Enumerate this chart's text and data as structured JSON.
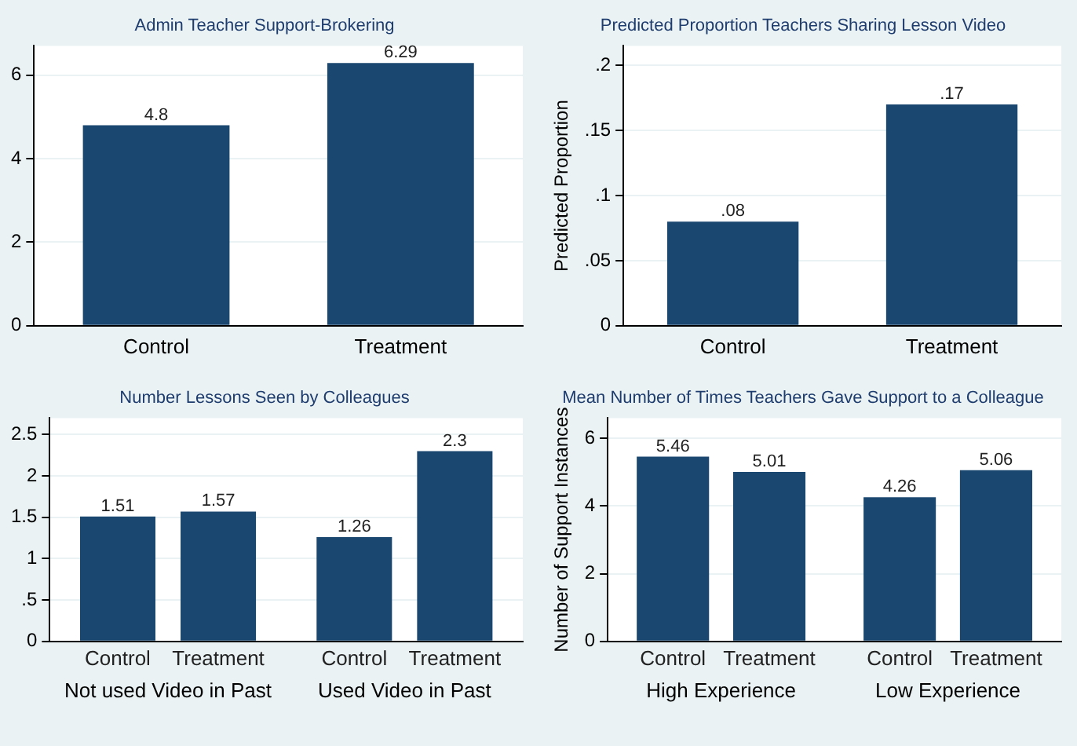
{
  "chart_data": [
    {
      "type": "bar",
      "title": "Admin Teacher Support-Brokering",
      "categories": [
        "Control",
        "Treatment"
      ],
      "values": [
        4.8,
        6.29
      ],
      "color": "#1a476f",
      "ylim": [
        0,
        6.7
      ],
      "yticks": [
        0,
        2,
        4,
        6
      ],
      "grid": "y",
      "data_labels": true,
      "legend": false
    },
    {
      "type": "bar",
      "title": "Predicted Proportion Teachers Sharing Lesson Video",
      "ylabel": "Predicted Proportion",
      "categories": [
        "Control",
        "Treatment"
      ],
      "values": [
        0.08,
        0.17
      ],
      "value_labels": [
        ".08",
        ".17"
      ],
      "color": "#1a476f",
      "ylim": [
        0,
        0.215
      ],
      "yticks": [
        0,
        {
          "value": 0.05,
          "label": ".05"
        },
        {
          "value": 0.1,
          "label": ".1"
        },
        {
          "value": 0.15,
          "label": ".15"
        },
        {
          "value": 0.2,
          "label": ".2"
        }
      ],
      "grid": "y",
      "legend": false
    },
    {
      "type": "bar",
      "title": "Number Lessons Seen by Colleagues",
      "categories": [
        "Not used Video in Past",
        "Used Video in Past"
      ],
      "series": [
        {
          "name": "Control",
          "color": "#1a476f",
          "values": [
            1.51,
            1.26
          ]
        },
        {
          "name": "Treatment",
          "color": "#1a476f",
          "values": [
            1.57,
            2.3
          ]
        }
      ],
      "ylim": [
        0,
        2.7
      ],
      "yticks": [
        0,
        {
          "value": 0.5,
          "label": ".5"
        },
        1,
        1.5,
        2,
        2.5
      ],
      "grid": "y",
      "data_labels": true,
      "legend": false
    },
    {
      "type": "bar",
      "title": "Mean Number of Times Teachers Gave Support to a Colleague",
      "ylabel": "Number of Support Instances",
      "categories": [
        "High Experience",
        "Low Experience"
      ],
      "series": [
        {
          "name": "Control",
          "color": "#1a476f",
          "values": [
            5.46,
            4.26
          ]
        },
        {
          "name": "Treatment",
          "color": "#1a476f",
          "values": [
            5.01,
            5.06
          ]
        }
      ],
      "ylim": [
        0,
        6.6
      ],
      "yticks": [
        0,
        2,
        4,
        6
      ],
      "grid": "y",
      "data_labels": true,
      "legend": false
    }
  ]
}
